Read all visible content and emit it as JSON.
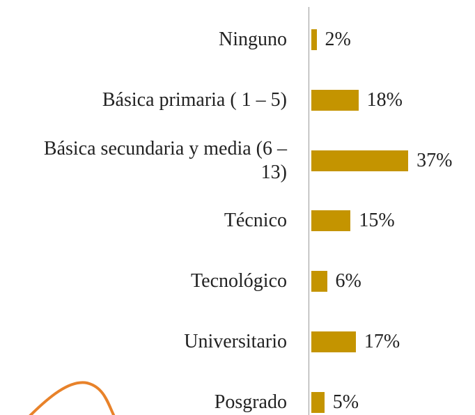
{
  "chart_data": {
    "type": "bar",
    "orientation": "horizontal",
    "categories": [
      "Ninguno",
      "Básica primaria ( 1 – 5)",
      "Básica secundaria y media (6 – 13)",
      "Técnico",
      "Tecnológico",
      "Universitario",
      "Posgrado"
    ],
    "values": [
      2,
      18,
      37,
      15,
      6,
      17,
      5
    ],
    "value_labels": [
      "2%",
      "18%",
      "37%",
      "15%",
      "6%",
      "17%",
      "5%"
    ],
    "color": "#c49400"
  }
}
